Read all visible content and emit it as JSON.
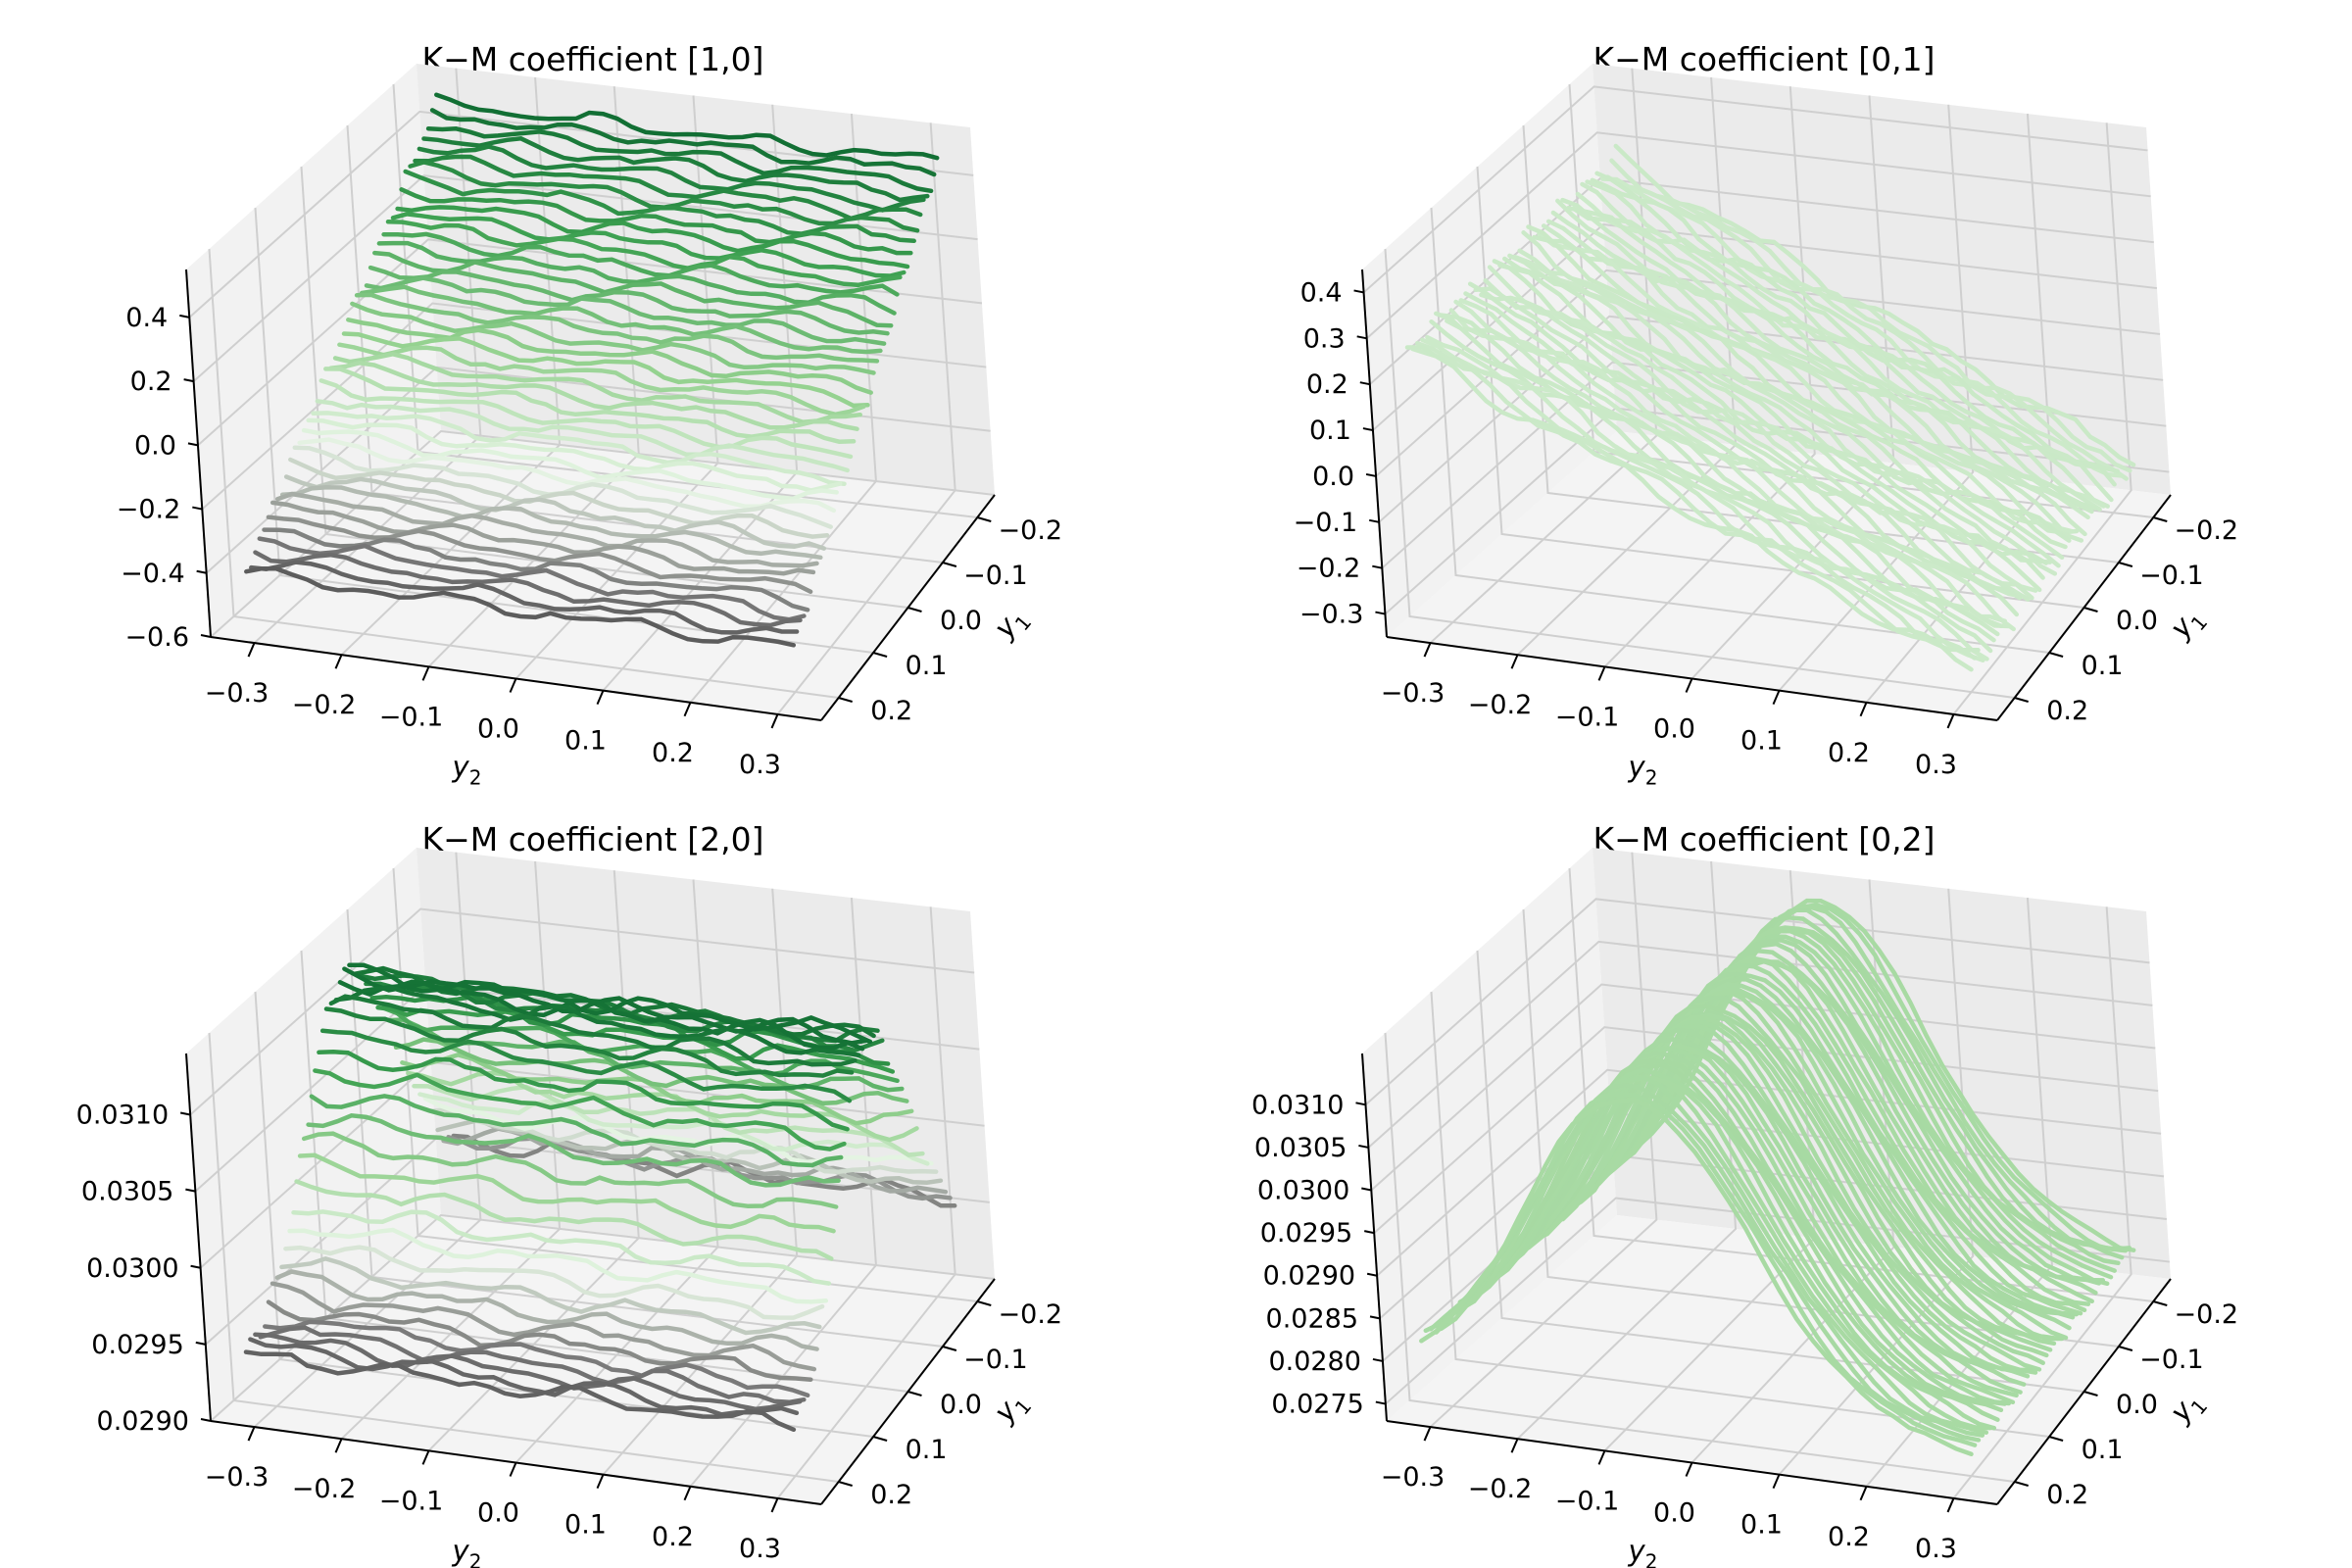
{
  "figure": {
    "panels": [
      {
        "title": "K−M coefficient [1,0]"
      },
      {
        "title": "K−M coefficient [0,1]"
      },
      {
        "title": "K−M coefficient [2,0]"
      },
      {
        "title": "K−M coefficient [0,2]"
      }
    ]
  },
  "chart_data": [
    {
      "type": "surface3d",
      "title": "K−M coefficient [1,0]",
      "xlabel": "y2",
      "ylabel": "y1",
      "x_ticks": [
        "−0.3",
        "−0.2",
        "−0.1",
        "0.0",
        "0.1",
        "0.2",
        "0.3"
      ],
      "y_ticks": [
        "−0.2",
        "−0.1",
        "0.0",
        "0.1",
        "0.2"
      ],
      "z_ticks": [
        "−0.6",
        "−0.4",
        "−0.2",
        "0.0",
        "0.2",
        "0.4"
      ],
      "xlim": [
        -0.35,
        0.35
      ],
      "ylim": [
        -0.25,
        0.25
      ],
      "zlim": [
        -0.6,
        0.55
      ],
      "surface": {
        "model": "linear_in_y1",
        "z_at_y1_min": 0.5,
        "z_at_y1_max": -0.45,
        "noise": 0.03
      },
      "colormap": "Greens_r",
      "grid": true
    },
    {
      "type": "surface3d",
      "title": "K−M coefficient [0,1]",
      "xlabel": "y2",
      "ylabel": "y1",
      "x_ticks": [
        "−0.3",
        "−0.2",
        "−0.1",
        "0.0",
        "0.1",
        "0.2",
        "0.3"
      ],
      "y_ticks": [
        "−0.2",
        "−0.1",
        "0.0",
        "0.1",
        "0.2"
      ],
      "z_ticks": [
        "−0.3",
        "−0.2",
        "−0.1",
        "0.0",
        "0.1",
        "0.2",
        "0.3",
        "0.4"
      ],
      "xlim": [
        -0.35,
        0.35
      ],
      "ylim": [
        -0.25,
        0.25
      ],
      "zlim": [
        -0.35,
        0.45
      ],
      "surface": {
        "model": "linear_in_y2",
        "z_at_y2_min": 0.3,
        "z_at_y2_max": -0.3,
        "noise": 0.03
      },
      "colormap": "Greens_r",
      "grid": true
    },
    {
      "type": "surface3d",
      "title": "K−M coefficient [2,0]",
      "xlabel": "y2",
      "ylabel": "y1",
      "x_ticks": [
        "−0.3",
        "−0.2",
        "−0.1",
        "0.0",
        "0.1",
        "0.2",
        "0.3"
      ],
      "y_ticks": [
        "−0.2",
        "−0.1",
        "0.0",
        "0.1",
        "0.2"
      ],
      "z_ticks": [
        "0.0290",
        "0.0295",
        "0.0300",
        "0.0305",
        "0.0310"
      ],
      "xlim": [
        -0.35,
        0.35
      ],
      "ylim": [
        -0.25,
        0.25
      ],
      "zlim": [
        0.029,
        0.0314
      ],
      "surface": {
        "model": "ridge_in_y1",
        "z_base": 0.02935,
        "z_peak": 0.0312,
        "noise": 8e-05
      },
      "colormap": "Greens_r",
      "grid": true
    },
    {
      "type": "surface3d",
      "title": "K−M coefficient [0,2]",
      "xlabel": "y2",
      "ylabel": "y1",
      "x_ticks": [
        "−0.3",
        "−0.2",
        "−0.1",
        "0.0",
        "0.1",
        "0.2",
        "0.3"
      ],
      "y_ticks": [
        "−0.2",
        "−0.1",
        "0.0",
        "0.1",
        "0.2"
      ],
      "z_ticks": [
        "0.0275",
        "0.0280",
        "0.0285",
        "0.0290",
        "0.0295",
        "0.0300",
        "0.0305",
        "0.0310"
      ],
      "xlim": [
        -0.35,
        0.35
      ],
      "ylim": [
        -0.25,
        0.25
      ],
      "zlim": [
        0.0273,
        0.0316
      ],
      "surface": {
        "model": "ridge_in_y2",
        "z_base": 0.0277,
        "z_peak": 0.0314,
        "noise": 8e-05
      },
      "colormap": "Greens_r",
      "grid": true
    }
  ]
}
